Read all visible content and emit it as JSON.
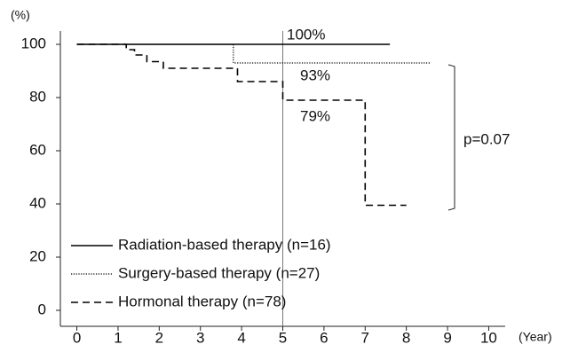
{
  "chart_data": {
    "type": "line",
    "step": "post",
    "y_label": "(%)",
    "x_label": "(Year)",
    "xlim": [
      -0.4,
      10.4
    ],
    "xticks": [
      0,
      1,
      2,
      3,
      4,
      5,
      6,
      7,
      8,
      9,
      10
    ],
    "ylim": [
      -6,
      105
    ],
    "yticks": [
      0,
      20,
      40,
      60,
      80,
      100
    ],
    "vline": 5,
    "series": [
      {
        "name": "Radiation-based therapy (n=16)",
        "color": "#000000",
        "dash": "solid",
        "x": [
          0,
          7.6
        ],
        "values": [
          100,
          100
        ]
      },
      {
        "name": "Surgery-based therapy (n=27)",
        "color": "#000000",
        "dash": "dotted",
        "x": [
          0,
          3.8,
          8.6
        ],
        "values": [
          100,
          93,
          93
        ]
      },
      {
        "name": "Hormonal therapy (n=78)",
        "color": "#000000",
        "dash": "dashed",
        "x": [
          0,
          1.2,
          1.4,
          1.7,
          2.1,
          3.9,
          5.0,
          7.0,
          8.0
        ],
        "values": [
          100,
          98,
          96,
          93.5,
          91,
          86,
          79,
          39.5,
          39.5
        ]
      }
    ],
    "annotations": [
      "100%",
      "93%",
      "79%",
      "p=0.07"
    ]
  }
}
